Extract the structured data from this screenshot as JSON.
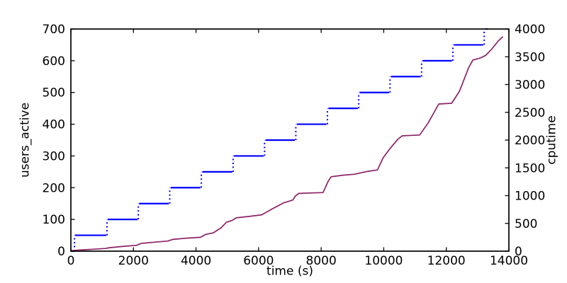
{
  "figure": {
    "background": "#ffffff",
    "axis_color": "#000000"
  },
  "chart_data": {
    "type": "line",
    "title": "",
    "xlabel": "time (s)",
    "ylabel_left": "users_active",
    "ylabel_right": "cputime",
    "xlim": [
      0,
      14000
    ],
    "ylim_left": [
      0,
      700
    ],
    "ylim_right": [
      0,
      4000
    ],
    "x_ticks": [
      0,
      2000,
      4000,
      6000,
      8000,
      10000,
      12000,
      14000
    ],
    "y_ticks_left": [
      0,
      100,
      200,
      300,
      400,
      500,
      600,
      700
    ],
    "y_ticks_right": [
      0,
      500,
      1000,
      1500,
      2000,
      2500,
      3000,
      3500,
      4000
    ],
    "grid": false,
    "legend": null,
    "series": [
      {
        "name": "users_active",
        "axis": "left",
        "color": "#0000ff",
        "style": "step",
        "riser_style": "dotted",
        "steps": [
          [
            0,
            100,
            0
          ],
          [
            130,
            1130,
            50
          ],
          [
            1180,
            2130,
            100
          ],
          [
            2180,
            3130,
            150
          ],
          [
            3190,
            4140,
            200
          ],
          [
            4200,
            5160,
            250
          ],
          [
            5210,
            6160,
            300
          ],
          [
            6220,
            7160,
            350
          ],
          [
            7220,
            8170,
            400
          ],
          [
            8230,
            9170,
            450
          ],
          [
            9230,
            10170,
            500
          ],
          [
            10230,
            11180,
            550
          ],
          [
            11240,
            12180,
            600
          ],
          [
            12240,
            13180,
            650
          ],
          [
            13240,
            13330,
            700
          ]
        ]
      },
      {
        "name": "cputime",
        "axis": "right",
        "color": "#8c2166",
        "style": "line",
        "points": [
          [
            0,
            8
          ],
          [
            300,
            20
          ],
          [
            700,
            34
          ],
          [
            1100,
            48
          ],
          [
            1250,
            64
          ],
          [
            1700,
            88
          ],
          [
            2100,
            106
          ],
          [
            2250,
            140
          ],
          [
            2700,
            163
          ],
          [
            3100,
            182
          ],
          [
            3250,
            212
          ],
          [
            3700,
            234
          ],
          [
            4150,
            250
          ],
          [
            4300,
            300
          ],
          [
            4550,
            330
          ],
          [
            4800,
            420
          ],
          [
            4970,
            520
          ],
          [
            5160,
            556
          ],
          [
            5280,
            600
          ],
          [
            5700,
            626
          ],
          [
            6100,
            655
          ],
          [
            6450,
            765
          ],
          [
            6800,
            870
          ],
          [
            7090,
            920
          ],
          [
            7180,
            995
          ],
          [
            7280,
            1040
          ],
          [
            7700,
            1048
          ],
          [
            8060,
            1055
          ],
          [
            8220,
            1255
          ],
          [
            8320,
            1340
          ],
          [
            8700,
            1368
          ],
          [
            9060,
            1385
          ],
          [
            9500,
            1438
          ],
          [
            9800,
            1462
          ],
          [
            9980,
            1680
          ],
          [
            10210,
            1855
          ],
          [
            10460,
            2020
          ],
          [
            10590,
            2077
          ],
          [
            10900,
            2085
          ],
          [
            11150,
            2092
          ],
          [
            11420,
            2310
          ],
          [
            11620,
            2510
          ],
          [
            11760,
            2650
          ],
          [
            11950,
            2656
          ],
          [
            12170,
            2662
          ],
          [
            12420,
            2880
          ],
          [
            12710,
            3300
          ],
          [
            12850,
            3442
          ],
          [
            13080,
            3477
          ],
          [
            13260,
            3525
          ],
          [
            13460,
            3645
          ],
          [
            13660,
            3785
          ],
          [
            13810,
            3862
          ]
        ]
      }
    ]
  }
}
